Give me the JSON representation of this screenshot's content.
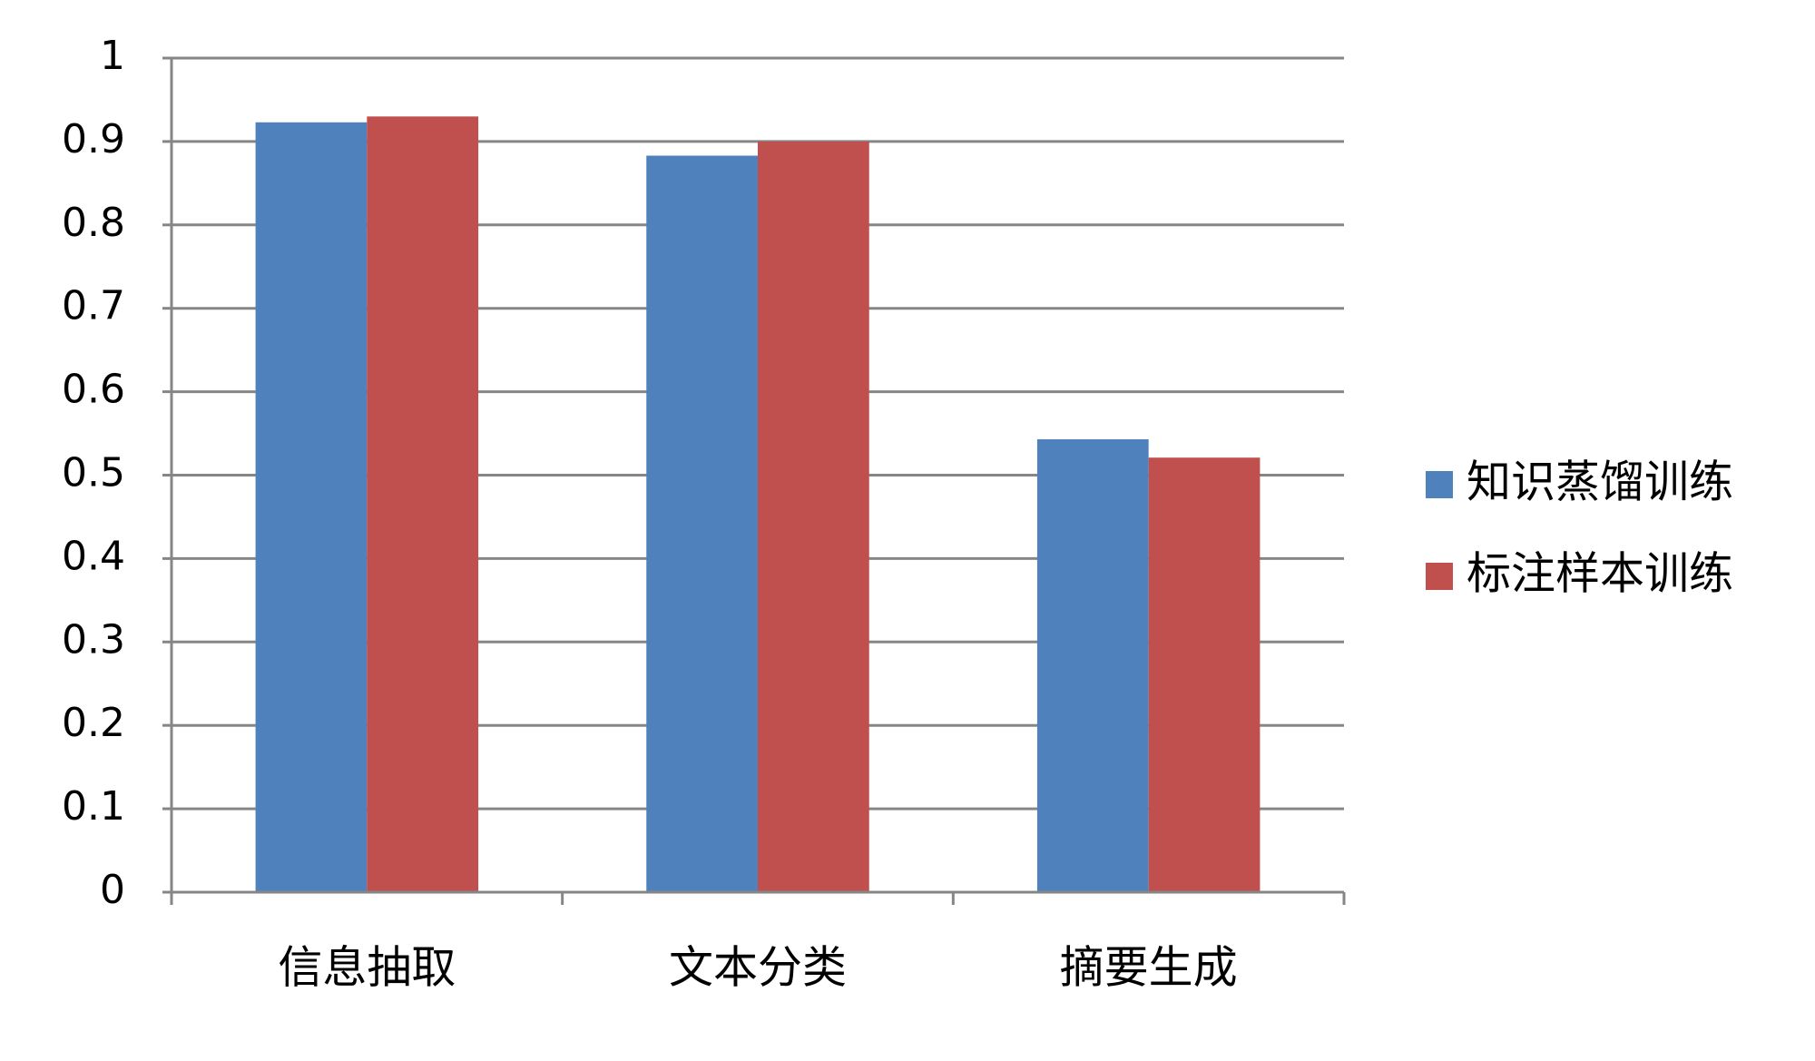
{
  "chart_data": {
    "type": "bar",
    "categories": [
      "信息抽取",
      "文本分类",
      "摘要生成"
    ],
    "series": [
      {
        "name": "知识蒸馏训练",
        "color": "#4f81bd",
        "values": [
          0.923,
          0.883,
          0.543
        ]
      },
      {
        "name": "标注样本训练",
        "color": "#c0504d",
        "values": [
          0.93,
          0.9,
          0.521
        ]
      }
    ],
    "ylim": [
      0,
      1
    ],
    "yticks": [
      0,
      0.1,
      0.2,
      0.3,
      0.4,
      0.5,
      0.6,
      0.7,
      0.8,
      0.9,
      1
    ],
    "grid": true,
    "legend": "right"
  }
}
